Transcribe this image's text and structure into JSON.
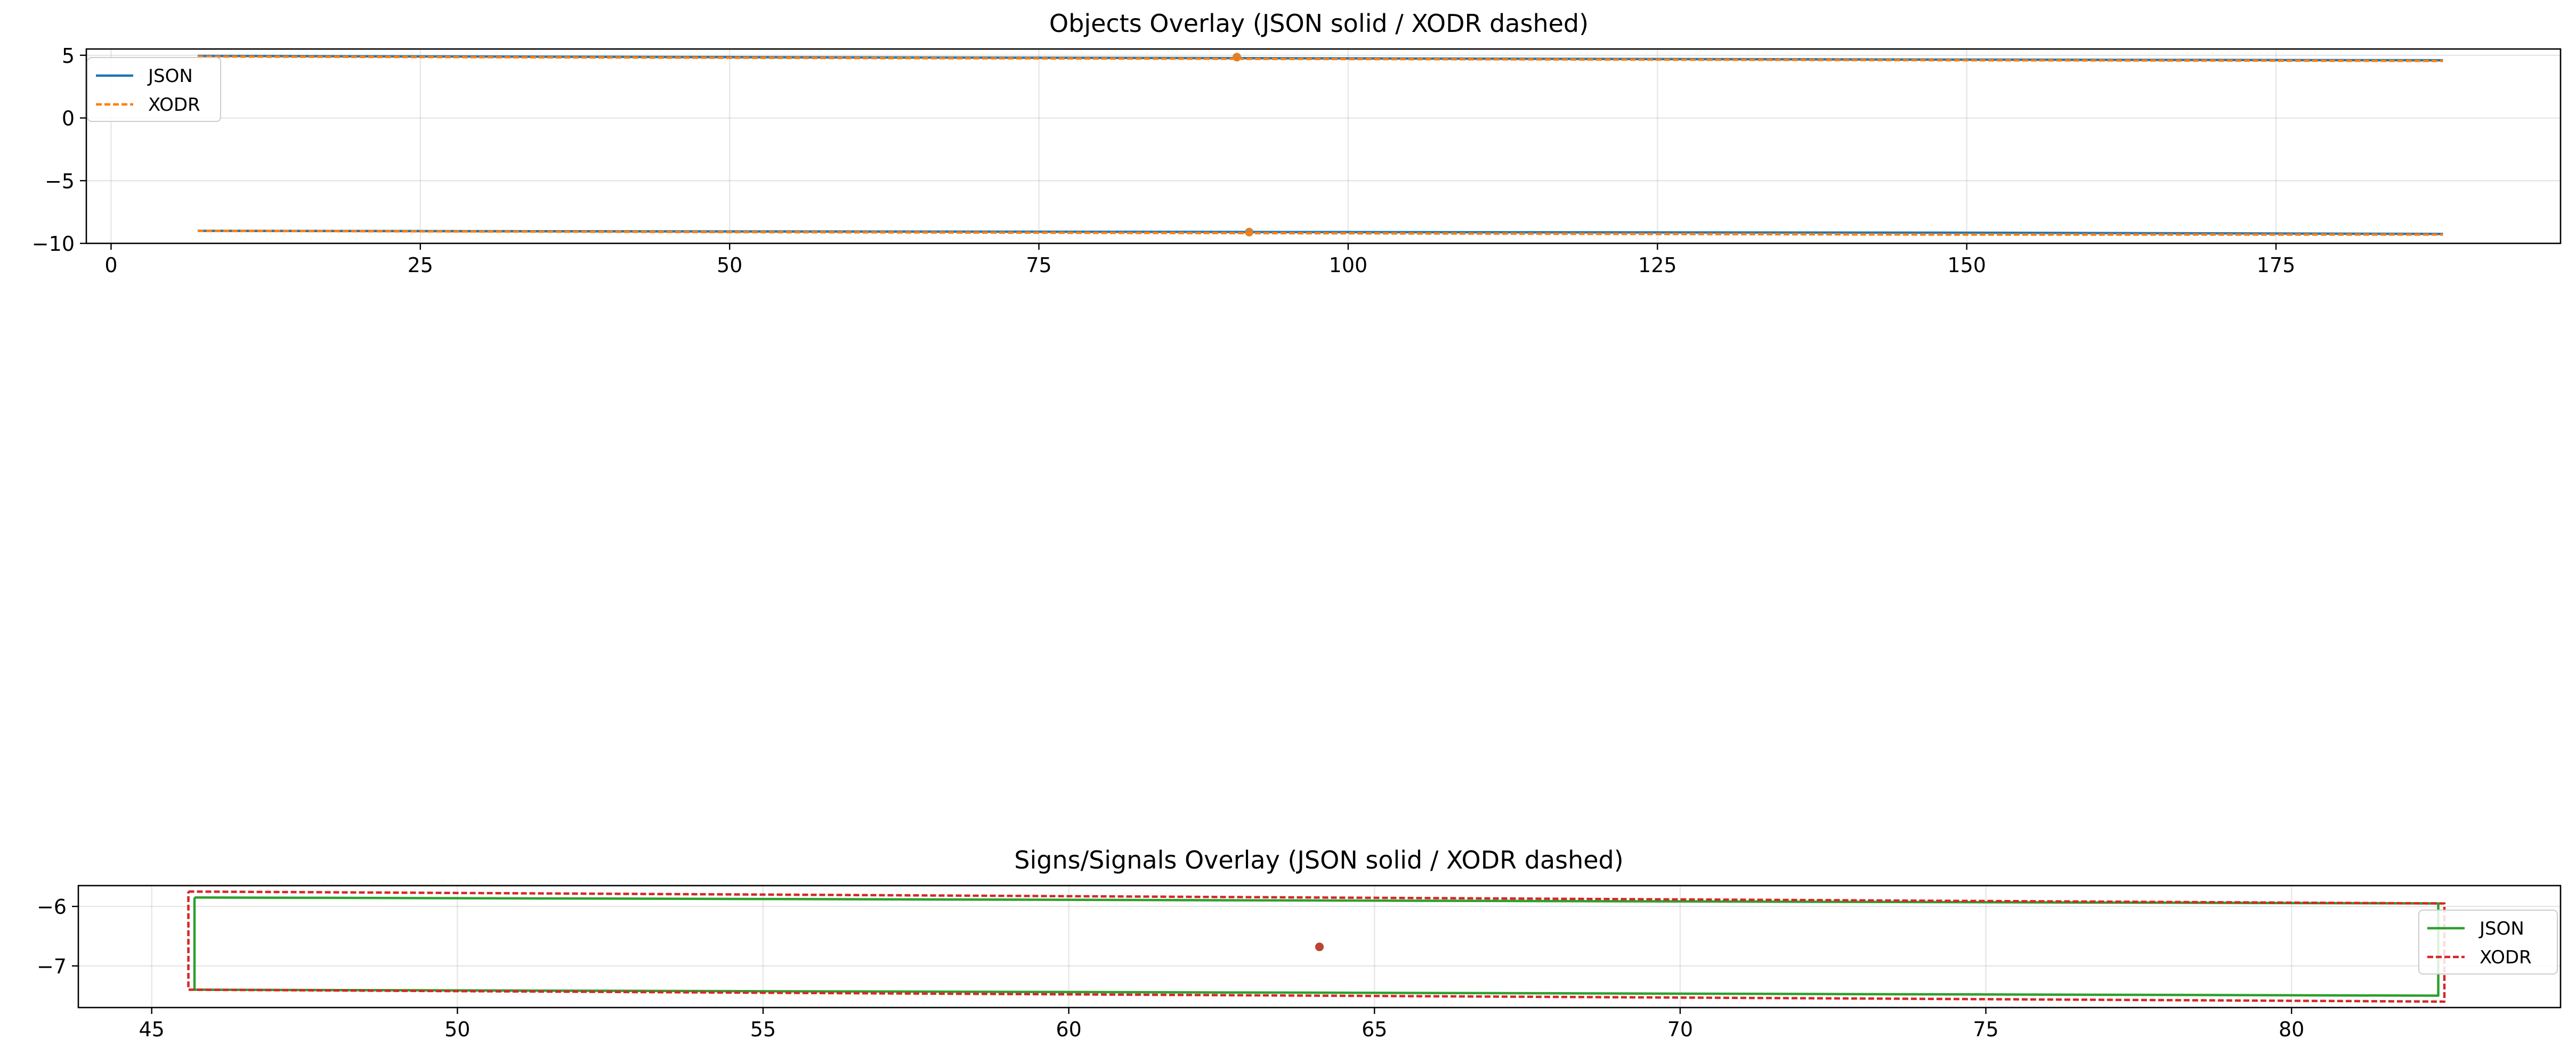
{
  "figure": {
    "background": "#ffffff"
  },
  "chart_data": [
    {
      "type": "line",
      "title": "Objects Overlay (JSON solid / XODR dashed)",
      "xlabel": "",
      "ylabel": "",
      "xlim": [
        -2,
        198
      ],
      "ylim": [
        -10,
        5.5
      ],
      "xticks": [
        0,
        25,
        50,
        75,
        100,
        125,
        150,
        175
      ],
      "yticks": [
        5,
        0,
        -5,
        -10
      ],
      "xtick_labels": [
        "0",
        "25",
        "50",
        "75",
        "100",
        "125",
        "150",
        "175"
      ],
      "ytick_labels": [
        "5",
        "0",
        "−5",
        "−10"
      ],
      "grid": true,
      "legend": {
        "placement": "upper-left",
        "entries": [
          "JSON",
          "XODR"
        ]
      },
      "series": [
        {
          "name": "JSON",
          "style": "solid",
          "color": "#1f77b4",
          "lines": [
            {
              "x": [
                7,
                50,
                100,
                150,
                188.5
              ],
              "y": [
                4.95,
                4.85,
                4.75,
                4.65,
                4.6
              ]
            },
            {
              "x": [
                7,
                50,
                100,
                150,
                188.5
              ],
              "y": [
                -9.0,
                -9.05,
                -9.1,
                -9.15,
                -9.25
              ]
            }
          ],
          "points": [
            {
              "x": 91,
              "y": 4.85
            },
            {
              "x": 92,
              "y": -9.1
            }
          ]
        },
        {
          "name": "XODR",
          "style": "dashed",
          "color": "#ff7f0e",
          "lines": [
            {
              "x": [
                7,
                50,
                100,
                150,
                188.5
              ],
              "y": [
                4.9,
                4.8,
                4.7,
                4.6,
                4.55
              ]
            },
            {
              "x": [
                7,
                50,
                100,
                150,
                188.5
              ],
              "y": [
                -9.0,
                -9.1,
                -9.2,
                -9.3,
                -9.3
              ]
            }
          ],
          "points": [
            {
              "x": 91,
              "y": 4.85
            },
            {
              "x": 92,
              "y": -9.1
            }
          ]
        }
      ]
    },
    {
      "type": "line",
      "title": "Signs/Signals Overlay (JSON solid / XODR dashed)",
      "xlabel": "",
      "ylabel": "",
      "xlim": [
        43.8,
        84.4
      ],
      "ylim": [
        -7.7,
        -5.65
      ],
      "xticks": [
        45,
        50,
        55,
        60,
        65,
        70,
        75,
        80
      ],
      "yticks": [
        -6,
        -7
      ],
      "xtick_labels": [
        "45",
        "50",
        "55",
        "60",
        "65",
        "70",
        "75",
        "80"
      ],
      "ytick_labels": [
        "−6",
        "−7"
      ],
      "grid": true,
      "legend": {
        "placement": "center-right",
        "entries": [
          "JSON",
          "XODR"
        ]
      },
      "series": [
        {
          "name": "JSON",
          "style": "solid",
          "color": "#2ca02c",
          "lines": [
            {
              "x": [
                45.7,
                82.4,
                82.4,
                45.7,
                45.7
              ],
              "y": [
                -5.85,
                -5.95,
                -7.5,
                -7.4,
                -5.85
              ]
            }
          ],
          "points": [
            {
              "x": 64.1,
              "y": -6.68
            }
          ]
        },
        {
          "name": "XODR",
          "style": "dashed",
          "color": "#d62728",
          "lines": [
            {
              "x": [
                45.6,
                82.5,
                82.5,
                45.6,
                45.6
              ],
              "y": [
                -5.75,
                -5.95,
                -7.6,
                -7.4,
                -5.75
              ]
            }
          ],
          "points": [
            {
              "x": 64.1,
              "y": -6.68
            }
          ]
        }
      ]
    }
  ]
}
